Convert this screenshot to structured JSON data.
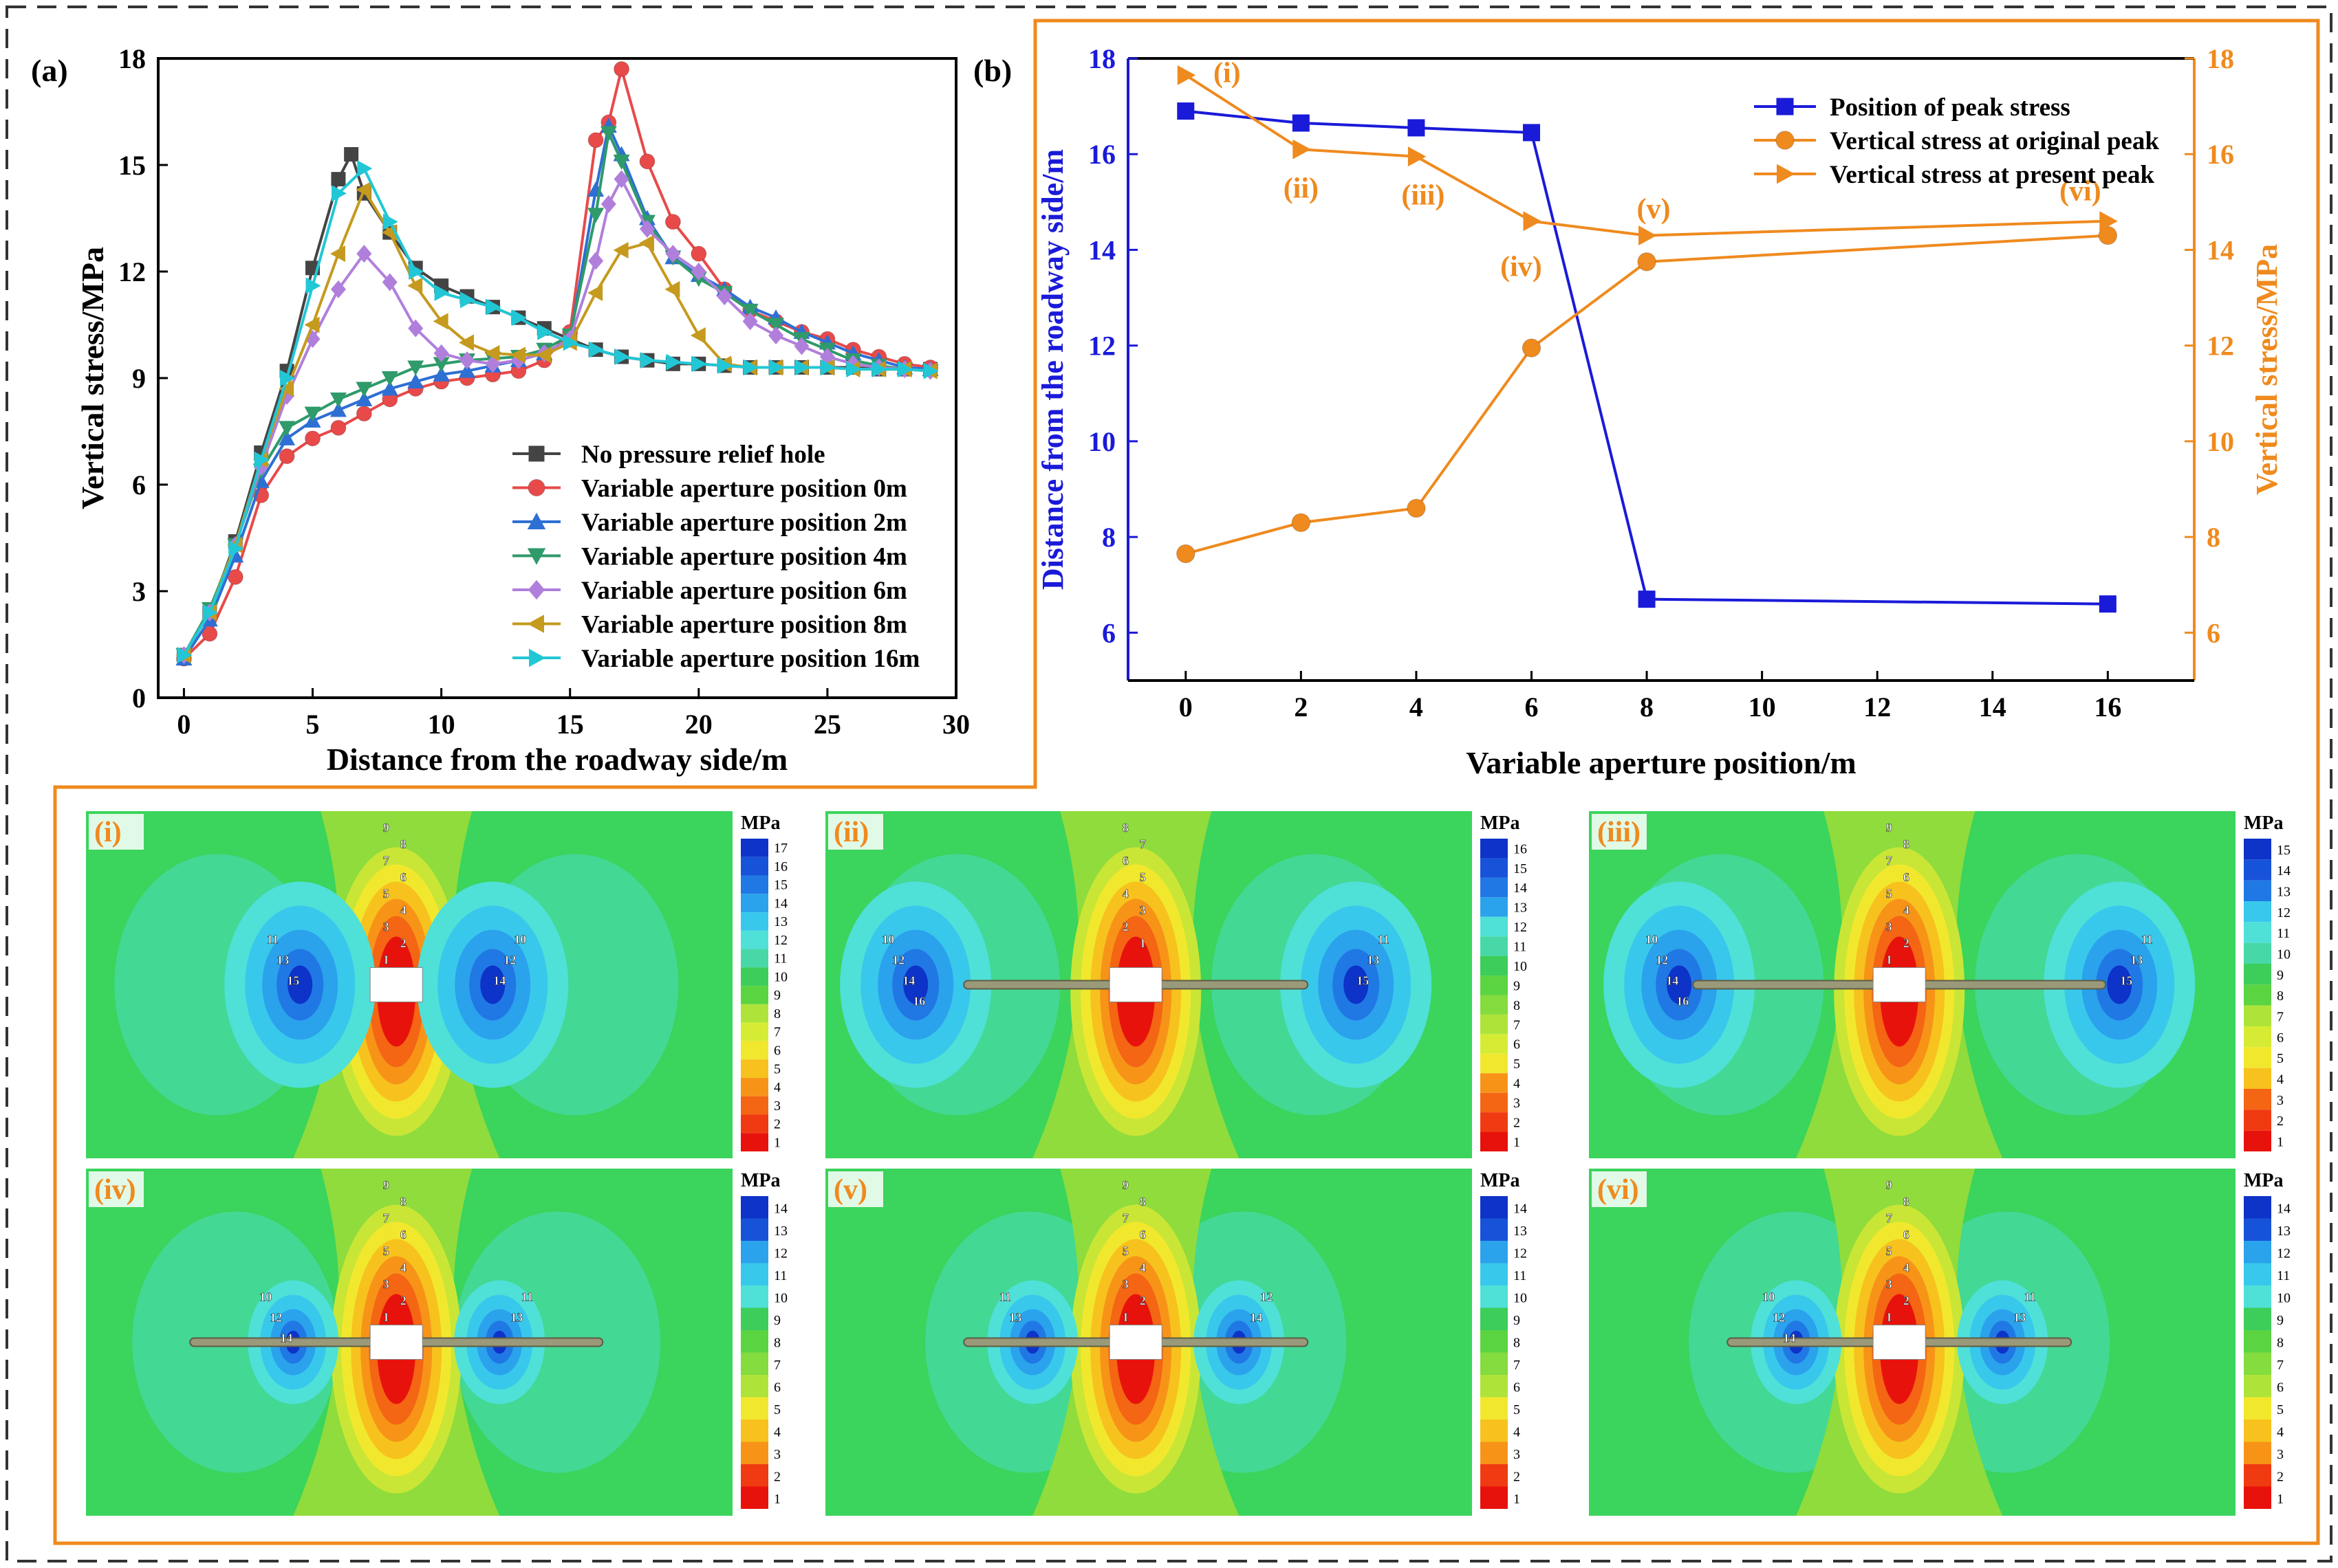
{
  "chart_data": [
    {
      "panel": "(a)",
      "type": "line",
      "title": "",
      "xlabel": "Distance from the roadway side/m",
      "ylabel": "Vertical stress/MPa",
      "xlim": [
        -1,
        30
      ],
      "ylim": [
        0,
        18
      ],
      "xticks": [
        "0",
        "5",
        "10",
        "15",
        "20",
        "25",
        "30"
      ],
      "yticks": [
        "0",
        "3",
        "6",
        "9",
        "12",
        "15",
        "18"
      ],
      "legend_position": "lower-right",
      "series": [
        {
          "name": "No pressure relief hole",
          "color": "#444444",
          "marker": "square",
          "x": [
            0,
            1,
            2,
            3,
            4,
            5,
            6,
            6.5,
            7,
            8,
            9,
            10,
            11,
            12,
            13,
            14,
            15,
            16,
            17,
            18,
            19,
            20,
            21,
            22,
            23,
            24,
            25,
            26,
            27,
            28,
            29
          ],
          "values": [
            1.2,
            2.4,
            4.4,
            6.9,
            9.2,
            12.1,
            14.6,
            15.3,
            14.2,
            13.1,
            12.1,
            11.6,
            11.3,
            11.0,
            10.7,
            10.4,
            10.1,
            9.8,
            9.6,
            9.5,
            9.4,
            9.4,
            9.35,
            9.3,
            9.3,
            9.3,
            9.3,
            9.3,
            9.25,
            9.25,
            9.25
          ]
        },
        {
          "name": "Variable aperture position 0m",
          "color": "#e84a4a",
          "marker": "circle",
          "x": [
            0,
            1,
            2,
            3,
            4,
            5,
            6,
            7,
            8,
            9,
            10,
            11,
            12,
            13,
            14,
            15,
            16,
            16.5,
            17,
            18,
            19,
            20,
            21,
            22,
            23,
            24,
            25,
            26,
            27,
            28,
            29
          ],
          "values": [
            1.1,
            1.8,
            3.4,
            5.7,
            6.8,
            7.3,
            7.6,
            8.0,
            8.4,
            8.7,
            8.9,
            9.0,
            9.1,
            9.2,
            9.5,
            10.3,
            15.7,
            16.2,
            17.7,
            15.1,
            13.4,
            12.5,
            11.5,
            10.9,
            10.6,
            10.3,
            10.1,
            9.8,
            9.6,
            9.4,
            9.3
          ]
        },
        {
          "name": "Variable aperture position 2m",
          "color": "#2e6fd4",
          "marker": "triangle-up",
          "x": [
            0,
            1,
            2,
            3,
            4,
            5,
            6,
            7,
            8,
            9,
            10,
            11,
            12,
            13,
            14,
            15,
            16,
            16.5,
            17,
            18,
            19,
            20,
            21,
            22,
            23,
            24,
            25,
            26,
            27,
            28,
            29
          ],
          "values": [
            1.1,
            2.2,
            4.0,
            6.1,
            7.3,
            7.8,
            8.1,
            8.4,
            8.7,
            8.9,
            9.1,
            9.2,
            9.35,
            9.5,
            9.7,
            10.1,
            14.3,
            16.1,
            15.3,
            13.5,
            12.4,
            11.9,
            11.5,
            11.0,
            10.7,
            10.3,
            10.0,
            9.7,
            9.5,
            9.3,
            9.25
          ]
        },
        {
          "name": "Variable aperture position 4m",
          "color": "#2f9a6a",
          "marker": "triangle-down",
          "x": [
            0,
            1,
            2,
            3,
            4,
            5,
            6,
            7,
            8,
            9,
            10,
            11,
            12,
            13,
            14,
            15,
            16,
            16.5,
            17,
            18,
            19,
            20,
            21,
            22,
            23,
            24,
            25,
            26,
            27,
            28,
            29
          ],
          "values": [
            1.2,
            2.5,
            4.3,
            6.4,
            7.6,
            8.0,
            8.4,
            8.7,
            9.0,
            9.3,
            9.4,
            9.5,
            9.55,
            9.6,
            9.8,
            10.2,
            13.6,
            15.9,
            15.1,
            13.4,
            12.4,
            11.8,
            11.4,
            10.9,
            10.5,
            10.1,
            9.8,
            9.5,
            9.35,
            9.25,
            9.2
          ]
        },
        {
          "name": "Variable aperture position 6m",
          "color": "#b07fdc",
          "marker": "diamond",
          "x": [
            0,
            1,
            2,
            3,
            4,
            5,
            6,
            7,
            8,
            9,
            10,
            11,
            12,
            13,
            14,
            15,
            16,
            16.5,
            17,
            18,
            19,
            20,
            21,
            22,
            23,
            24,
            25,
            26,
            27,
            28,
            29
          ],
          "values": [
            1.2,
            2.4,
            4.3,
            6.5,
            8.5,
            10.1,
            11.5,
            12.5,
            11.7,
            10.4,
            9.7,
            9.5,
            9.4,
            9.5,
            9.7,
            10.1,
            12.3,
            13.9,
            14.6,
            13.2,
            12.5,
            12.0,
            11.3,
            10.6,
            10.2,
            9.9,
            9.6,
            9.4,
            9.3,
            9.25,
            9.2
          ]
        },
        {
          "name": "Variable aperture position 8m",
          "color": "#c59a1e",
          "marker": "triangle-left",
          "x": [
            0,
            1,
            2,
            3,
            4,
            5,
            6,
            7,
            8,
            9,
            10,
            11,
            12,
            13,
            14,
            15,
            16,
            17,
            18,
            19,
            20,
            21,
            22,
            23,
            24,
            25,
            26,
            27,
            28,
            29
          ],
          "values": [
            1.2,
            2.4,
            4.3,
            6.7,
            8.7,
            10.5,
            12.5,
            14.3,
            13.1,
            11.6,
            10.6,
            10.0,
            9.7,
            9.65,
            9.65,
            10.0,
            11.4,
            12.6,
            12.8,
            11.5,
            10.2,
            9.4,
            9.3,
            9.3,
            9.3,
            9.3,
            9.25,
            9.25,
            9.25,
            9.2
          ]
        },
        {
          "name": "Variable aperture position 16m",
          "color": "#22c7d6",
          "marker": "triangle-right",
          "x": [
            0,
            1,
            2,
            3,
            4,
            5,
            6,
            7,
            8,
            9,
            10,
            11,
            12,
            13,
            14,
            15,
            16,
            17,
            18,
            19,
            20,
            21,
            22,
            23,
            24,
            25,
            26,
            27,
            28,
            29
          ],
          "values": [
            1.2,
            2.4,
            4.2,
            6.7,
            9.0,
            11.6,
            14.2,
            14.9,
            13.4,
            12.0,
            11.4,
            11.2,
            11.0,
            10.7,
            10.3,
            10.0,
            9.8,
            9.6,
            9.5,
            9.45,
            9.4,
            9.35,
            9.3,
            9.3,
            9.3,
            9.3,
            9.25,
            9.25,
            9.25,
            9.2
          ]
        }
      ]
    },
    {
      "panel": "(b)",
      "type": "line",
      "xlabel": "Variable aperture position/m",
      "ylabel_left": "Distance from the roadway side/m",
      "ylabel_right": "Vertical stress/MPa",
      "xlim": [
        -1,
        17.5
      ],
      "ylim_left": [
        5,
        18
      ],
      "ylim_right": [
        5,
        18
      ],
      "xticks": [
        "0",
        "2",
        "4",
        "6",
        "8",
        "10",
        "12",
        "14",
        "16"
      ],
      "yticks_left": [
        "6",
        "8",
        "10",
        "12",
        "14",
        "16",
        "18"
      ],
      "yticks_right": [
        "6",
        "8",
        "10",
        "12",
        "14",
        "16",
        "18"
      ],
      "legend_position": "top-right",
      "categories": [
        0,
        2,
        4,
        6,
        8,
        16
      ],
      "series": [
        {
          "name": "Position of peak stress",
          "axis": "left",
          "color": "#1a1ad9",
          "marker": "square",
          "values": [
            16.9,
            16.65,
            16.55,
            16.45,
            6.7,
            6.6
          ]
        },
        {
          "name": "Vertical stress at original peak",
          "axis": "right",
          "color": "#ef8a1e",
          "marker": "circle",
          "values": [
            7.65,
            8.3,
            8.6,
            11.95,
            13.75,
            14.3
          ]
        },
        {
          "name": "Vertical stress at present peak",
          "axis": "right",
          "color": "#ef8a1e",
          "marker": "triangle-right",
          "values": [
            17.65,
            16.1,
            15.95,
            14.6,
            14.3,
            14.6
          ]
        }
      ],
      "annotations": [
        "(i)",
        "(ii)",
        "(iii)",
        "(iv)",
        "(v)",
        "(vi)"
      ]
    }
  ],
  "panel_labels": {
    "a": "(a)",
    "b": "(b)"
  },
  "contour_maps": {
    "unit": "MPa",
    "panels": [
      {
        "label": "(i)",
        "legend": [
          "17",
          "16",
          "15",
          "14",
          "13",
          "12",
          "11",
          "10",
          "9",
          "8",
          "7",
          "6",
          "5",
          "4",
          "3",
          "2",
          "1"
        ],
        "left_labels": [
          "11",
          "13",
          "15"
        ],
        "right_labels": [
          "10",
          "12",
          "14"
        ],
        "top_labels": [
          "9",
          "8",
          "7",
          "6",
          "5",
          "4",
          "3",
          "2",
          "1"
        ]
      },
      {
        "label": "(ii)",
        "legend": [
          "16",
          "15",
          "14",
          "13",
          "12",
          "11",
          "10",
          "9",
          "8",
          "7",
          "6",
          "5",
          "4",
          "3",
          "2",
          "1"
        ],
        "left_labels": [
          "10",
          "12",
          "14",
          "16"
        ],
        "right_labels": [
          "11",
          "13",
          "15"
        ],
        "top_labels": [
          "8",
          "7",
          "6",
          "5",
          "4",
          "3",
          "2",
          "1"
        ]
      },
      {
        "label": "(iii)",
        "legend": [
          "15",
          "14",
          "13",
          "12",
          "11",
          "10",
          "9",
          "8",
          "7",
          "6",
          "5",
          "4",
          "3",
          "2",
          "1"
        ],
        "left_labels": [
          "10",
          "12",
          "14",
          "16"
        ],
        "right_labels": [
          "11",
          "13",
          "15"
        ],
        "top_labels": [
          "9",
          "8",
          "7",
          "6",
          "5",
          "4",
          "3",
          "2",
          "1"
        ]
      },
      {
        "label": "(iv)",
        "legend": [
          "14",
          "13",
          "12",
          "11",
          "10",
          "9",
          "8",
          "7",
          "6",
          "5",
          "4",
          "3",
          "2",
          "1"
        ],
        "left_labels": [
          "10",
          "12",
          "14"
        ],
        "right_labels": [
          "11",
          "13"
        ],
        "top_labels": [
          "9",
          "8",
          "7",
          "6",
          "5",
          "4",
          "3",
          "2",
          "1"
        ]
      },
      {
        "label": "(v)",
        "legend": [
          "14",
          "13",
          "12",
          "11",
          "10",
          "9",
          "8",
          "7",
          "6",
          "5",
          "4",
          "3",
          "2",
          "1"
        ],
        "left_labels": [
          "11",
          "13"
        ],
        "right_labels": [
          "12",
          "14"
        ],
        "top_labels": [
          "9",
          "8",
          "7",
          "6",
          "5",
          "4",
          "3",
          "2",
          "1"
        ]
      },
      {
        "label": "(vi)",
        "legend": [
          "14",
          "13",
          "12",
          "11",
          "10",
          "9",
          "8",
          "7",
          "6",
          "5",
          "4",
          "3",
          "2",
          "1"
        ],
        "left_labels": [
          "10",
          "12",
          "14"
        ],
        "right_labels": [
          "11",
          "13"
        ],
        "top_labels": [
          "9",
          "8",
          "7",
          "6",
          "5",
          "4",
          "3",
          "2",
          "1"
        ]
      }
    ]
  }
}
